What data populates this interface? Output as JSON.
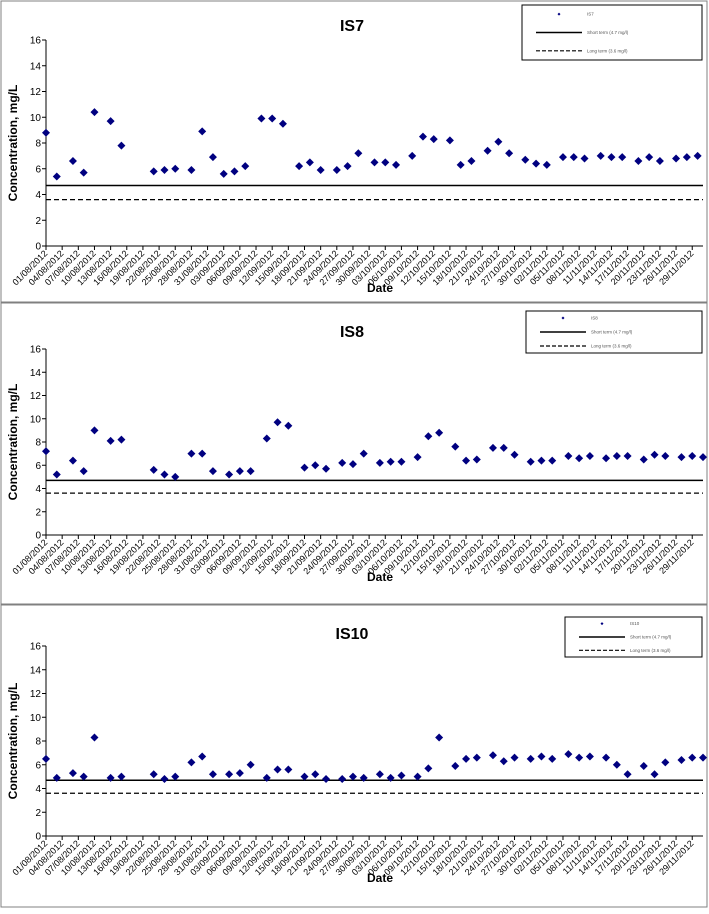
{
  "chart_data": [
    {
      "type": "scatter",
      "title": "IS7",
      "xlabel": "Date",
      "ylabel": "Concentration, mg/L",
      "ylim": [
        0,
        16
      ],
      "yticks": [
        0,
        2,
        4,
        6,
        8,
        10,
        12,
        14,
        16
      ],
      "xlim": [
        "01/08/2012",
        "01/12/2012"
      ],
      "xtick_labels": [
        "01/08/2012",
        "04/08/2012",
        "07/08/2012",
        "10/08/2012",
        "13/08/2012",
        "16/08/2012",
        "19/08/2012",
        "22/08/2012",
        "25/08/2012",
        "28/08/2012",
        "31/08/2012",
        "03/09/2012",
        "06/09/2012",
        "09/09/2012",
        "12/09/2012",
        "15/09/2012",
        "18/09/2012",
        "21/09/2012",
        "24/09/2012",
        "27/09/2012",
        "30/09/2012",
        "03/10/2012",
        "06/10/2012",
        "09/10/2012",
        "12/10/2012",
        "15/10/2012",
        "18/10/2012",
        "21/10/2012",
        "24/10/2012",
        "27/10/2012",
        "30/10/2012",
        "02/11/2012",
        "05/11/2012",
        "08/11/2012",
        "11/11/2012",
        "14/11/2012",
        "17/11/2012",
        "20/11/2012",
        "23/11/2012",
        "26/11/2012",
        "29/11/2012"
      ],
      "grid": false,
      "legend_position": "top-right",
      "series": [
        {
          "name": "IS7",
          "marker": "diamond",
          "color": "#000080",
          "x": [
            "01/08/2012",
            "03/08/2012",
            "06/08/2012",
            "08/08/2012",
            "10/08/2012",
            "13/08/2012",
            "15/08/2012",
            "21/08/2012",
            "23/08/2012",
            "25/08/2012",
            "28/08/2012",
            "30/08/2012",
            "01/09/2012",
            "03/09/2012",
            "05/09/2012",
            "07/09/2012",
            "10/09/2012",
            "12/09/2012",
            "14/09/2012",
            "17/09/2012",
            "19/09/2012",
            "21/09/2012",
            "24/09/2012",
            "26/09/2012",
            "28/09/2012",
            "01/10/2012",
            "03/10/2012",
            "05/10/2012",
            "08/10/2012",
            "10/10/2012",
            "12/10/2012",
            "15/10/2012",
            "17/10/2012",
            "19/10/2012",
            "22/10/2012",
            "24/10/2012",
            "26/10/2012",
            "29/10/2012",
            "31/10/2012",
            "02/11/2012",
            "05/11/2012",
            "07/11/2012",
            "09/11/2012",
            "12/11/2012",
            "14/11/2012",
            "16/11/2012",
            "19/11/2012",
            "21/11/2012",
            "23/11/2012",
            "26/11/2012",
            "28/11/2012",
            "30/11/2012"
          ],
          "y": [
            8.8,
            5.4,
            6.6,
            5.7,
            10.4,
            9.7,
            7.8,
            5.8,
            5.9,
            6.0,
            5.9,
            8.9,
            6.9,
            5.6,
            5.8,
            6.2,
            9.9,
            9.9,
            9.5,
            6.2,
            6.5,
            5.9,
            5.9,
            6.2,
            7.2,
            6.5,
            6.5,
            6.3,
            7.0,
            8.5,
            8.3,
            8.2,
            6.3,
            6.6,
            7.4,
            8.1,
            7.2,
            6.7,
            6.4,
            6.3,
            6.9,
            6.9,
            6.8,
            7.0,
            6.9,
            6.9,
            6.6,
            6.9,
            6.6,
            6.8,
            6.9,
            7.0
          ]
        },
        {
          "name": "Short term (4.7 mg/l)",
          "type": "line",
          "style": "solid",
          "value": 4.7
        },
        {
          "name": "Long term (3.6 mg/l)",
          "type": "line",
          "style": "dashed",
          "value": 3.6
        }
      ]
    },
    {
      "type": "scatter",
      "title": "IS8",
      "xlabel": "Date",
      "ylabel": "Concentration, mg/L",
      "ylim": [
        0,
        16
      ],
      "yticks": [
        0,
        2,
        4,
        6,
        8,
        10,
        12,
        14,
        16
      ],
      "xlim": [
        "01/08/2012",
        "01/12/2012"
      ],
      "xtick_labels": [
        "01/08/2012",
        "04/08/2012",
        "07/08/2012",
        "10/08/2012",
        "13/08/2012",
        "16/08/2012",
        "19/08/2012",
        "22/08/2012",
        "25/08/2012",
        "28/08/2012",
        "31/08/2012",
        "03/09/2012",
        "06/09/2012",
        "09/09/2012",
        "12/09/2012",
        "15/09/2012",
        "18/09/2012",
        "21/09/2012",
        "24/09/2012",
        "27/09/2012",
        "30/09/2012",
        "03/10/2012",
        "06/10/2012",
        "09/10/2012",
        "12/10/2012",
        "15/10/2012",
        "18/10/2012",
        "21/10/2012",
        "24/10/2012",
        "27/10/2012",
        "30/10/2012",
        "02/11/2012",
        "05/11/2012",
        "08/11/2012",
        "11/11/2012",
        "14/11/2012",
        "17/11/2012",
        "20/11/2012",
        "23/11/2012",
        "26/11/2012",
        "29/11/2012"
      ],
      "grid": false,
      "legend_position": "top-right",
      "series": [
        {
          "name": "IS8",
          "marker": "diamond",
          "color": "#000080",
          "x": [
            "01/08/2012",
            "03/08/2012",
            "06/08/2012",
            "08/08/2012",
            "10/08/2012",
            "13/08/2012",
            "15/08/2012",
            "21/08/2012",
            "23/08/2012",
            "25/08/2012",
            "28/08/2012",
            "30/08/2012",
            "01/09/2012",
            "04/09/2012",
            "06/09/2012",
            "08/09/2012",
            "11/09/2012",
            "13/09/2012",
            "15/09/2012",
            "18/09/2012",
            "20/09/2012",
            "22/09/2012",
            "25/09/2012",
            "27/09/2012",
            "29/09/2012",
            "02/10/2012",
            "04/10/2012",
            "06/10/2012",
            "09/10/2012",
            "11/10/2012",
            "13/10/2012",
            "16/10/2012",
            "18/10/2012",
            "20/10/2012",
            "23/10/2012",
            "25/10/2012",
            "27/10/2012",
            "30/10/2012",
            "01/11/2012",
            "03/11/2012",
            "06/11/2012",
            "08/11/2012",
            "10/11/2012",
            "13/11/2012",
            "15/11/2012",
            "17/11/2012",
            "20/11/2012",
            "22/11/2012",
            "24/11/2012",
            "27/11/2012",
            "29/11/2012",
            "01/12/2012"
          ],
          "y": [
            7.2,
            5.2,
            6.4,
            5.5,
            9.0,
            8.1,
            8.2,
            5.6,
            5.2,
            5.0,
            7.0,
            7.0,
            5.5,
            5.2,
            5.5,
            5.5,
            8.3,
            9.7,
            9.4,
            5.8,
            6.0,
            5.7,
            6.2,
            6.1,
            7.0,
            6.2,
            6.3,
            6.3,
            6.7,
            8.5,
            8.8,
            7.6,
            6.4,
            6.5,
            7.5,
            7.5,
            6.9,
            6.3,
            6.4,
            6.4,
            6.8,
            6.6,
            6.8,
            6.6,
            6.8,
            6.8,
            6.5,
            6.9,
            6.8,
            6.7,
            6.8,
            6.7
          ]
        },
        {
          "name": "Short term (4.7 mg/l)",
          "type": "line",
          "style": "solid",
          "value": 4.7
        },
        {
          "name": "Long term (3.6 mg/l)",
          "type": "line",
          "style": "dashed",
          "value": 3.6
        }
      ]
    },
    {
      "type": "scatter",
      "title": "IS10",
      "xlabel": "Date",
      "ylabel": "Concentration, mg/L",
      "ylim": [
        0,
        16
      ],
      "yticks": [
        0,
        2,
        4,
        6,
        8,
        10,
        12,
        14,
        16
      ],
      "xlim": [
        "01/08/2012",
        "01/12/2012"
      ],
      "xtick_labels": [
        "01/08/2012",
        "04/08/2012",
        "07/08/2012",
        "10/08/2012",
        "13/08/2012",
        "16/08/2012",
        "19/08/2012",
        "22/08/2012",
        "25/08/2012",
        "28/08/2012",
        "31/08/2012",
        "03/09/2012",
        "06/09/2012",
        "09/09/2012",
        "12/09/2012",
        "15/09/2012",
        "18/09/2012",
        "21/09/2012",
        "24/09/2012",
        "27/09/2012",
        "30/09/2012",
        "03/10/2012",
        "06/10/2012",
        "09/10/2012",
        "12/10/2012",
        "15/10/2012",
        "18/10/2012",
        "21/10/2012",
        "24/10/2012",
        "27/10/2012",
        "30/10/2012",
        "02/11/2012",
        "05/11/2012",
        "08/11/2012",
        "11/11/2012",
        "14/11/2012",
        "17/11/2012",
        "20/11/2012",
        "23/11/2012",
        "26/11/2012",
        "29/11/2012"
      ],
      "grid": false,
      "legend_position": "top-right",
      "series": [
        {
          "name": "IS10",
          "marker": "diamond",
          "color": "#000080",
          "x": [
            "01/08/2012",
            "03/08/2012",
            "06/08/2012",
            "08/08/2012",
            "10/08/2012",
            "13/08/2012",
            "15/08/2012",
            "21/08/2012",
            "23/08/2012",
            "25/08/2012",
            "28/08/2012",
            "30/08/2012",
            "01/09/2012",
            "04/09/2012",
            "06/09/2012",
            "08/09/2012",
            "11/09/2012",
            "13/09/2012",
            "15/09/2012",
            "18/09/2012",
            "20/09/2012",
            "22/09/2012",
            "25/09/2012",
            "27/09/2012",
            "29/09/2012",
            "02/10/2012",
            "04/10/2012",
            "06/10/2012",
            "09/10/2012",
            "11/10/2012",
            "13/10/2012",
            "16/10/2012",
            "18/10/2012",
            "20/10/2012",
            "23/10/2012",
            "25/10/2012",
            "27/10/2012",
            "30/10/2012",
            "01/11/2012",
            "03/11/2012",
            "06/11/2012",
            "08/11/2012",
            "10/11/2012",
            "13/11/2012",
            "15/11/2012",
            "17/11/2012",
            "20/11/2012",
            "22/11/2012",
            "24/11/2012",
            "27/11/2012",
            "29/11/2012",
            "01/12/2012"
          ],
          "y": [
            6.5,
            4.9,
            5.3,
            5.0,
            8.3,
            4.9,
            5.0,
            5.2,
            4.8,
            5.0,
            6.2,
            6.7,
            5.2,
            5.2,
            5.3,
            6.0,
            4.9,
            5.6,
            5.6,
            5.0,
            5.2,
            4.8,
            4.8,
            5.0,
            4.9,
            5.2,
            4.9,
            5.1,
            5.0,
            5.7,
            8.3,
            5.9,
            6.5,
            6.6,
            6.8,
            6.3,
            6.6,
            6.5,
            6.7,
            6.5,
            6.9,
            6.6,
            6.7,
            6.6,
            6.0,
            5.2,
            5.9,
            5.2,
            6.2,
            6.4,
            6.6,
            6.6
          ]
        },
        {
          "name": "Short term (4.7 mg/l)",
          "type": "line",
          "style": "solid",
          "value": 4.7
        },
        {
          "name": "Long term (3.6 mg/l)",
          "type": "line",
          "style": "dashed",
          "value": 3.6
        }
      ]
    }
  ]
}
